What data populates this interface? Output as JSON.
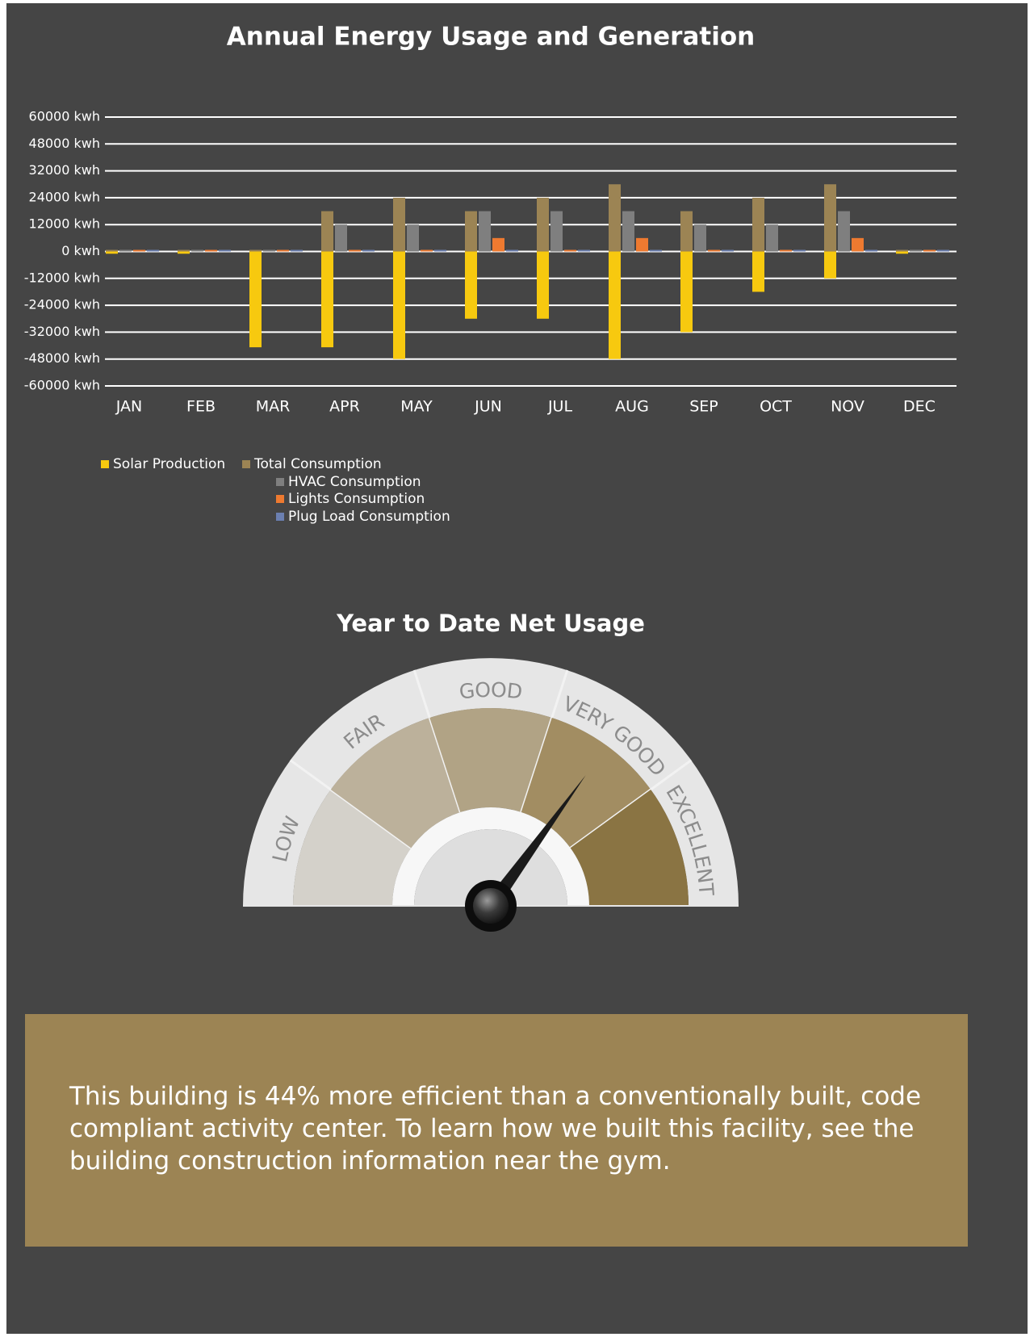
{
  "chart_data": {
    "type": "bar",
    "title": "Annual Energy Usage and Generation",
    "categories": [
      "JAN",
      "FEB",
      "MAR",
      "APR",
      "MAY",
      "JUN",
      "JUL",
      "AUG",
      "SEP",
      "OCT",
      "NOV",
      "DEC"
    ],
    "series": [
      {
        "name": "Solar Production",
        "color": "#f7c90f",
        "values": [
          -1000,
          -1000,
          -41000,
          -41000,
          -48000,
          -28000,
          -28000,
          -48000,
          -32000,
          -18000,
          -12000,
          -1000
        ]
      },
      {
        "name": "Total Consumption",
        "color": "#9c8454",
        "values": [
          0,
          0,
          0,
          18000,
          24000,
          18000,
          24000,
          28000,
          18000,
          24000,
          28000,
          0
        ]
      },
      {
        "name": "HVAC Consumption",
        "color": "#7f7f7f",
        "values": [
          0,
          0,
          0,
          12000,
          12000,
          18000,
          18000,
          18000,
          12000,
          12000,
          18000,
          0
        ]
      },
      {
        "name": "Lights Consumption",
        "color": "#ee7a30",
        "values": [
          0,
          0,
          0,
          0,
          0,
          6000,
          0,
          6000,
          0,
          0,
          6000,
          0
        ]
      },
      {
        "name": "Plug Load Consumption",
        "color": "#6b7fb0",
        "values": [
          0,
          0,
          0,
          0,
          0,
          0,
          0,
          0,
          0,
          0,
          0,
          0
        ]
      }
    ],
    "ylim": [
      -60000,
      60000
    ],
    "yticks": [
      {
        "value": 60000,
        "label": "60000 kwh"
      },
      {
        "value": 48000,
        "label": "48000 kwh"
      },
      {
        "value": 32000,
        "label": "32000 kwh"
      },
      {
        "value": 24000,
        "label": "24000 kwh"
      },
      {
        "value": 12000,
        "label": "12000 kwh"
      },
      {
        "value": 0,
        "label": "0 kwh"
      },
      {
        "value": -12000,
        "label": "-12000 kwh"
      },
      {
        "value": -24000,
        "label": "-24000 kwh"
      },
      {
        "value": -32000,
        "label": "-32000 kwh"
      },
      {
        "value": -48000,
        "label": "-48000 kwh"
      },
      {
        "value": -60000,
        "label": "-60000 kwh"
      }
    ],
    "grid": true
  },
  "gauge": {
    "title": "Year to Date Net Usage",
    "labels": [
      "LOW",
      "FAIR",
      "GOOD",
      "VERY GOOD",
      "EXCELLENT"
    ]
  },
  "message": "This building is 44% more efficient than a conventionally built, code compliant activity center. To learn how we built this facility, see the building construction information near the gym."
}
